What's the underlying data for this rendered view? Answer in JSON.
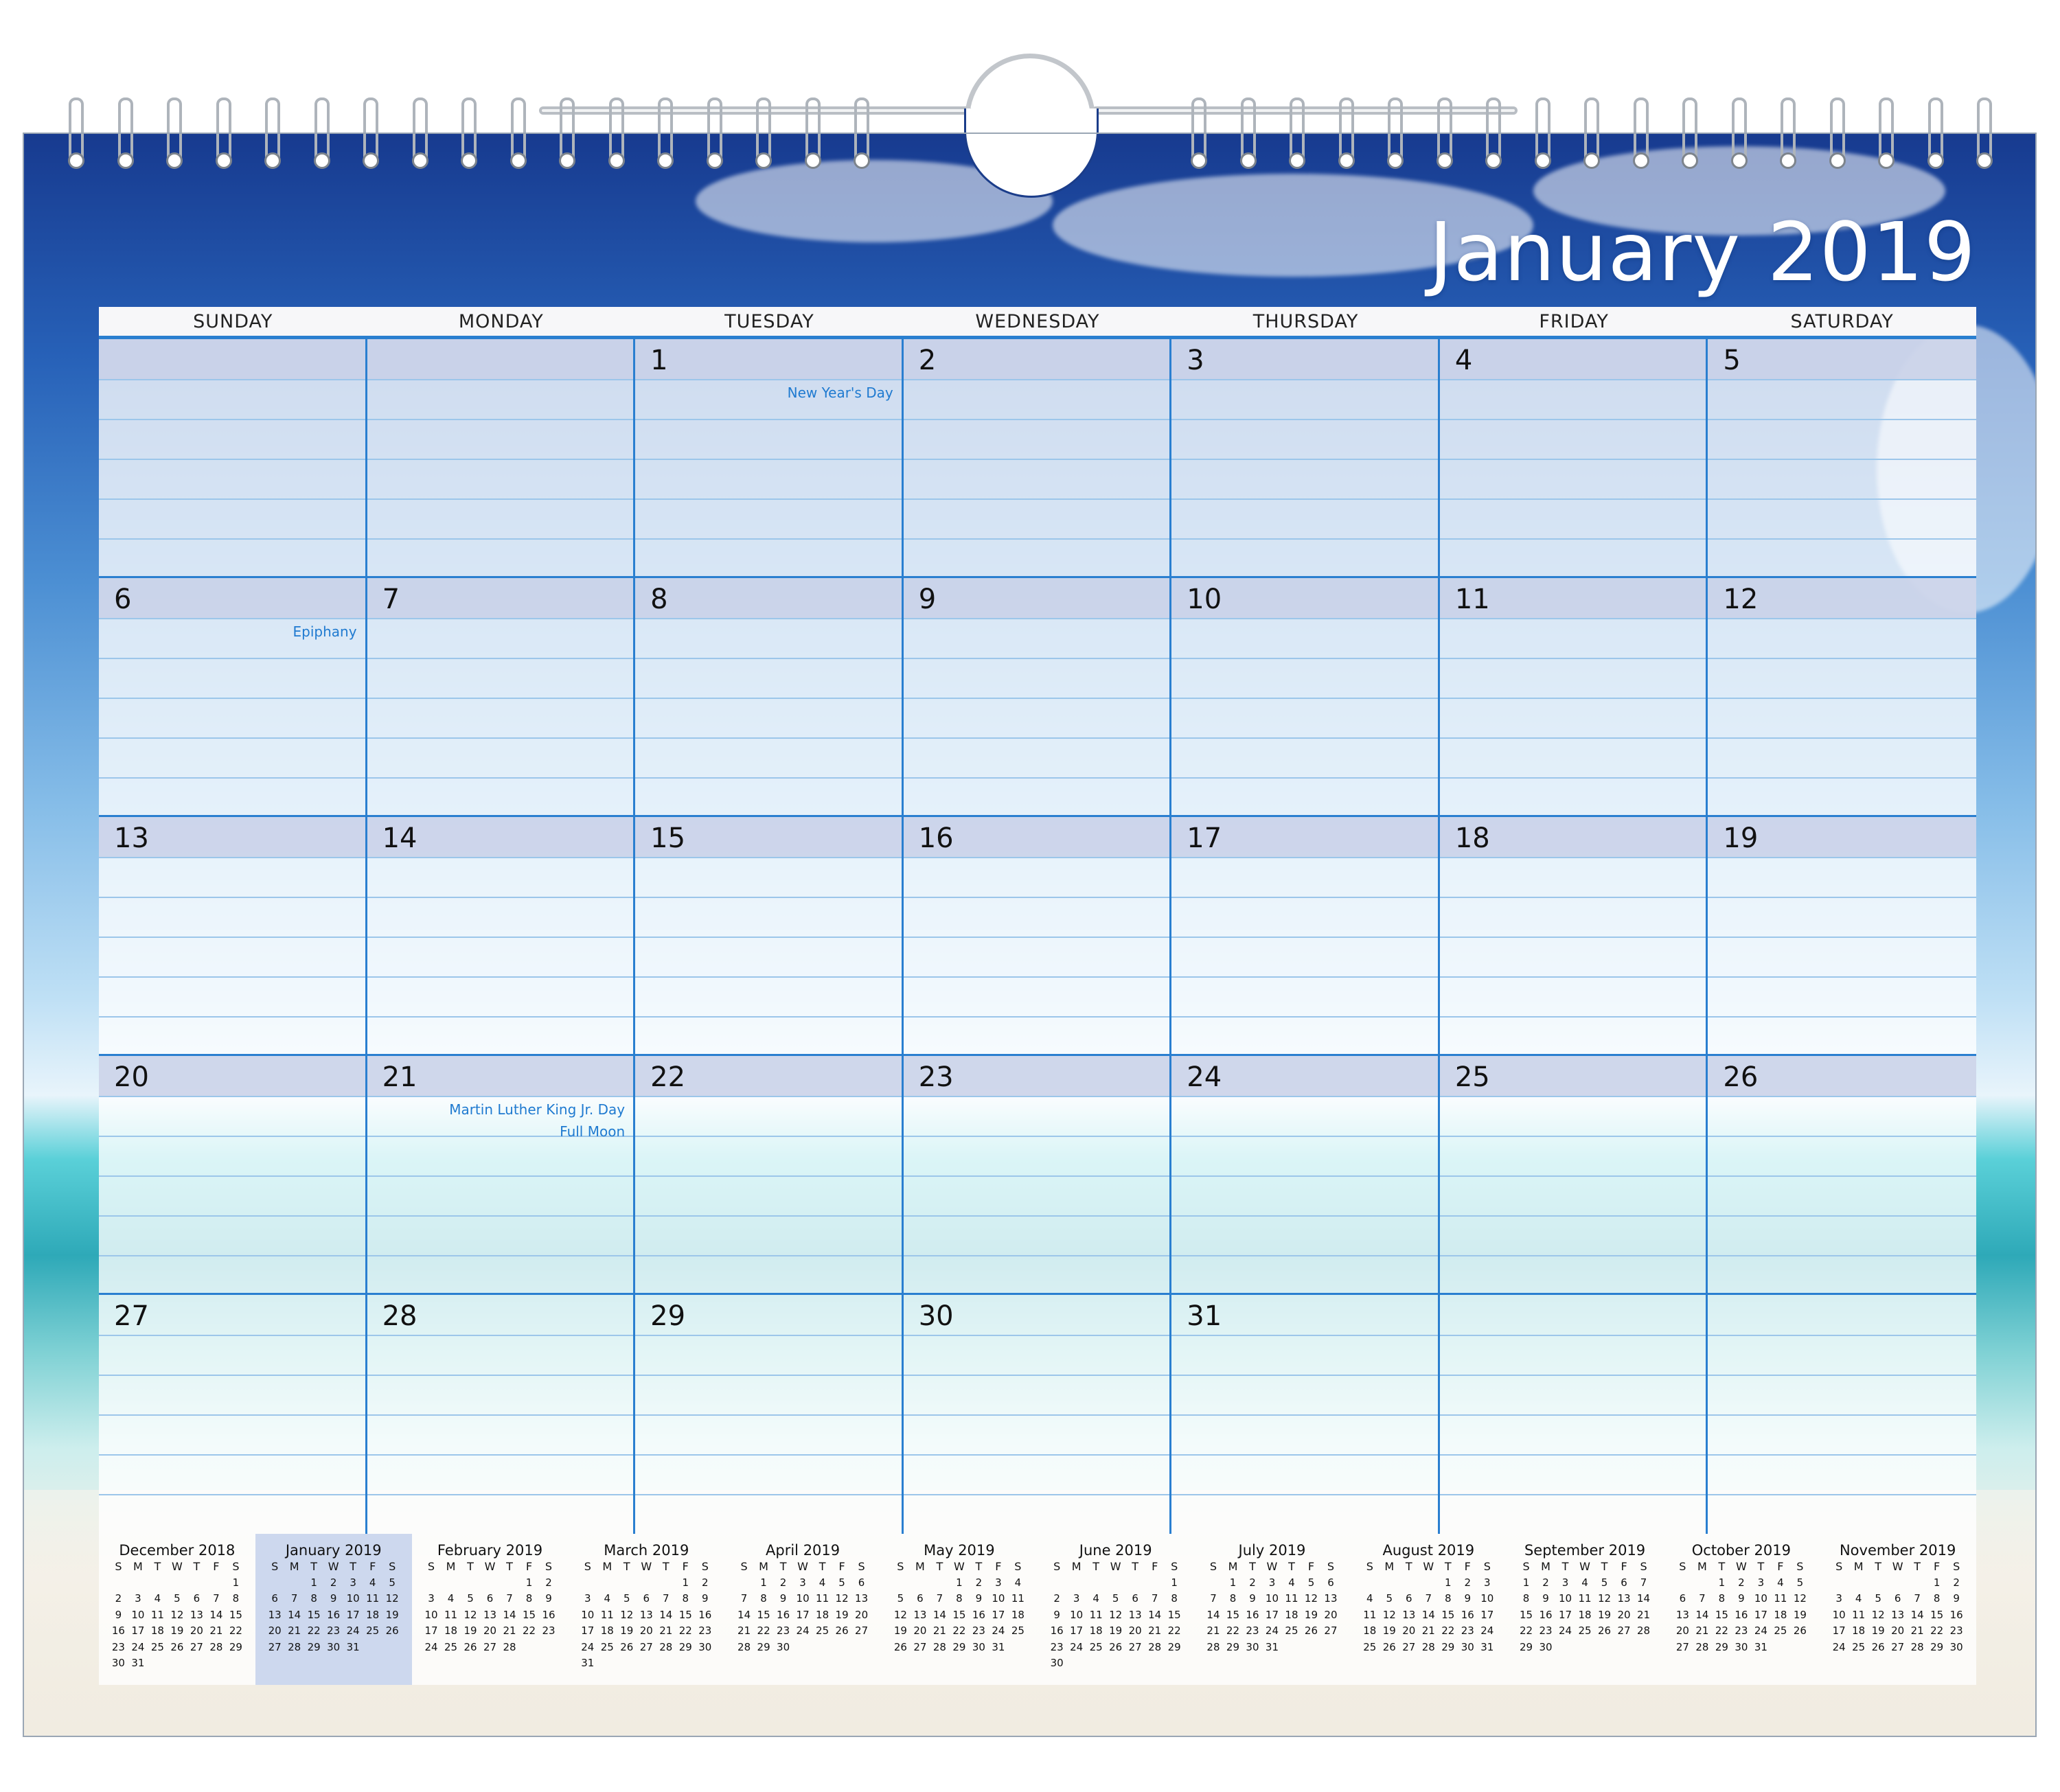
{
  "calendar": {
    "title": "January 2019",
    "day_names": [
      "SUNDAY",
      "MONDAY",
      "TUESDAY",
      "WEDNESDAY",
      "THURSDAY",
      "FRIDAY",
      "SATURDAY"
    ],
    "weeks": [
      [
        "",
        "",
        "1",
        "2",
        "3",
        "4",
        "5"
      ],
      [
        "6",
        "7",
        "8",
        "9",
        "10",
        "11",
        "12"
      ],
      [
        "13",
        "14",
        "15",
        "16",
        "17",
        "18",
        "19"
      ],
      [
        "20",
        "21",
        "22",
        "23",
        "24",
        "25",
        "26"
      ],
      [
        "27",
        "28",
        "29",
        "30",
        "31",
        "",
        ""
      ]
    ],
    "holidays": [
      {
        "week": 0,
        "day": 2,
        "lines": [
          "New Year's Day"
        ]
      },
      {
        "week": 1,
        "day": 0,
        "lines": [
          "Epiphany"
        ]
      },
      {
        "week": 3,
        "day": 1,
        "lines": [
          "Martin Luther King Jr. Day",
          "Full Moon"
        ]
      }
    ]
  },
  "mini_calendars": {
    "dow": [
      "S",
      "M",
      "T",
      "W",
      "T",
      "F",
      "S"
    ],
    "current_index": 1,
    "months": [
      {
        "title": "December 2018",
        "rows": [
          [
            "",
            "",
            "",
            "",
            "",
            "",
            "1"
          ],
          [
            "2",
            "3",
            "4",
            "5",
            "6",
            "7",
            "8"
          ],
          [
            "9",
            "10",
            "11",
            "12",
            "13",
            "14",
            "15"
          ],
          [
            "16",
            "17",
            "18",
            "19",
            "20",
            "21",
            "22"
          ],
          [
            "23",
            "24",
            "25",
            "26",
            "27",
            "28",
            "29"
          ],
          [
            "30",
            "31",
            "",
            "",
            "",
            "",
            ""
          ]
        ]
      },
      {
        "title": "January 2019",
        "rows": [
          [
            "",
            "",
            "1",
            "2",
            "3",
            "4",
            "5"
          ],
          [
            "6",
            "7",
            "8",
            "9",
            "10",
            "11",
            "12"
          ],
          [
            "13",
            "14",
            "15",
            "16",
            "17",
            "18",
            "19"
          ],
          [
            "20",
            "21",
            "22",
            "23",
            "24",
            "25",
            "26"
          ],
          [
            "27",
            "28",
            "29",
            "30",
            "31",
            "",
            ""
          ]
        ]
      },
      {
        "title": "February 2019",
        "rows": [
          [
            "",
            "",
            "",
            "",
            "",
            "1",
            "2"
          ],
          [
            "3",
            "4",
            "5",
            "6",
            "7",
            "8",
            "9"
          ],
          [
            "10",
            "11",
            "12",
            "13",
            "14",
            "15",
            "16"
          ],
          [
            "17",
            "18",
            "19",
            "20",
            "21",
            "22",
            "23"
          ],
          [
            "24",
            "25",
            "26",
            "27",
            "28",
            "",
            ""
          ]
        ]
      },
      {
        "title": "March 2019",
        "rows": [
          [
            "",
            "",
            "",
            "",
            "",
            "1",
            "2"
          ],
          [
            "3",
            "4",
            "5",
            "6",
            "7",
            "8",
            "9"
          ],
          [
            "10",
            "11",
            "12",
            "13",
            "14",
            "15",
            "16"
          ],
          [
            "17",
            "18",
            "19",
            "20",
            "21",
            "22",
            "23"
          ],
          [
            "24",
            "25",
            "26",
            "27",
            "28",
            "29",
            "30"
          ],
          [
            "31",
            "",
            "",
            "",
            "",
            "",
            ""
          ]
        ]
      },
      {
        "title": "April 2019",
        "rows": [
          [
            "",
            "1",
            "2",
            "3",
            "4",
            "5",
            "6"
          ],
          [
            "7",
            "8",
            "9",
            "10",
            "11",
            "12",
            "13"
          ],
          [
            "14",
            "15",
            "16",
            "17",
            "18",
            "19",
            "20"
          ],
          [
            "21",
            "22",
            "23",
            "24",
            "25",
            "26",
            "27"
          ],
          [
            "28",
            "29",
            "30",
            "",
            "",
            "",
            ""
          ]
        ]
      },
      {
        "title": "May 2019",
        "rows": [
          [
            "",
            "",
            "",
            "1",
            "2",
            "3",
            "4"
          ],
          [
            "5",
            "6",
            "7",
            "8",
            "9",
            "10",
            "11"
          ],
          [
            "12",
            "13",
            "14",
            "15",
            "16",
            "17",
            "18"
          ],
          [
            "19",
            "20",
            "21",
            "22",
            "23",
            "24",
            "25"
          ],
          [
            "26",
            "27",
            "28",
            "29",
            "30",
            "31",
            ""
          ]
        ]
      },
      {
        "title": "June 2019",
        "rows": [
          [
            "",
            "",
            "",
            "",
            "",
            "",
            "1"
          ],
          [
            "2",
            "3",
            "4",
            "5",
            "6",
            "7",
            "8"
          ],
          [
            "9",
            "10",
            "11",
            "12",
            "13",
            "14",
            "15"
          ],
          [
            "16",
            "17",
            "18",
            "19",
            "20",
            "21",
            "22"
          ],
          [
            "23",
            "24",
            "25",
            "26",
            "27",
            "28",
            "29"
          ],
          [
            "30",
            "",
            "",
            "",
            "",
            "",
            ""
          ]
        ]
      },
      {
        "title": "July 2019",
        "rows": [
          [
            "",
            "1",
            "2",
            "3",
            "4",
            "5",
            "6"
          ],
          [
            "7",
            "8",
            "9",
            "10",
            "11",
            "12",
            "13"
          ],
          [
            "14",
            "15",
            "16",
            "17",
            "18",
            "19",
            "20"
          ],
          [
            "21",
            "22",
            "23",
            "24",
            "25",
            "26",
            "27"
          ],
          [
            "28",
            "29",
            "30",
            "31",
            "",
            "",
            ""
          ]
        ]
      },
      {
        "title": "August 2019",
        "rows": [
          [
            "",
            "",
            "",
            "",
            "1",
            "2",
            "3"
          ],
          [
            "4",
            "5",
            "6",
            "7",
            "8",
            "9",
            "10"
          ],
          [
            "11",
            "12",
            "13",
            "14",
            "15",
            "16",
            "17"
          ],
          [
            "18",
            "19",
            "20",
            "21",
            "22",
            "23",
            "24"
          ],
          [
            "25",
            "26",
            "27",
            "28",
            "29",
            "30",
            "31"
          ]
        ]
      },
      {
        "title": "September 2019",
        "rows": [
          [
            "1",
            "2",
            "3",
            "4",
            "5",
            "6",
            "7"
          ],
          [
            "8",
            "9",
            "10",
            "11",
            "12",
            "13",
            "14"
          ],
          [
            "15",
            "16",
            "17",
            "18",
            "19",
            "20",
            "21"
          ],
          [
            "22",
            "23",
            "24",
            "25",
            "26",
            "27",
            "28"
          ],
          [
            "29",
            "30",
            "",
            "",
            "",
            "",
            ""
          ]
        ]
      },
      {
        "title": "October 2019",
        "rows": [
          [
            "",
            "",
            "1",
            "2",
            "3",
            "4",
            "5"
          ],
          [
            "6",
            "7",
            "8",
            "9",
            "10",
            "11",
            "12"
          ],
          [
            "13",
            "14",
            "15",
            "16",
            "17",
            "18",
            "19"
          ],
          [
            "20",
            "21",
            "22",
            "23",
            "24",
            "25",
            "26"
          ],
          [
            "27",
            "28",
            "29",
            "30",
            "31",
            "",
            ""
          ]
        ]
      },
      {
        "title": "November 2019",
        "rows": [
          [
            "",
            "",
            "",
            "",
            "",
            "1",
            "2"
          ],
          [
            "3",
            "4",
            "5",
            "6",
            "7",
            "8",
            "9"
          ],
          [
            "10",
            "11",
            "12",
            "13",
            "14",
            "15",
            "16"
          ],
          [
            "17",
            "18",
            "19",
            "20",
            "21",
            "22",
            "23"
          ],
          [
            "24",
            "25",
            "26",
            "27",
            "28",
            "29",
            "30"
          ]
        ]
      }
    ]
  },
  "colors": {
    "grid_line": "#2a7fd0",
    "holiday_text": "#1f7ad0",
    "week_band": "#c8d0e8",
    "sky_top": "#173a8f"
  }
}
